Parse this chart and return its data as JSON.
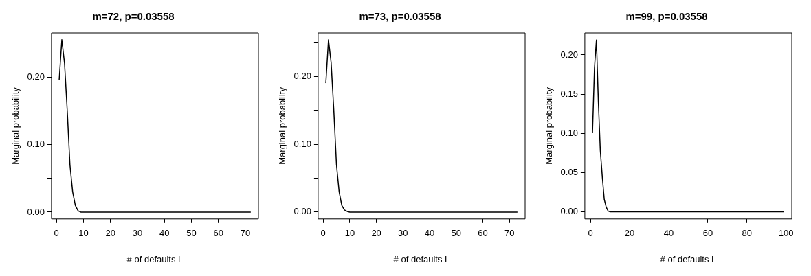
{
  "chart_data": [
    {
      "type": "line",
      "title": "m=72, p=0.03558",
      "xlabel": "# of defaults L",
      "ylabel": "Marginal probability",
      "grid": false,
      "legend": false,
      "marker": "none",
      "line_style": "solid",
      "xlim": [
        -1.84,
        74.84
      ],
      "xticks": [
        0,
        10,
        20,
        30,
        40,
        50,
        60,
        70
      ],
      "ylim": [
        -0.01,
        0.265
      ],
      "yticks": [
        {
          "value": 0,
          "label": "0.00"
        },
        {
          "value": 0.05,
          "label": null
        },
        {
          "value": 0.1,
          "label": "0.10"
        },
        {
          "value": 0.15,
          "label": null
        },
        {
          "value": 0.2,
          "label": "0.20"
        },
        {
          "value": 0.25,
          "label": null
        }
      ],
      "series": [
        {
          "color": "#000000",
          "x": [
            1,
            2,
            3,
            4,
            5,
            6,
            7,
            8,
            9,
            72
          ],
          "values": [
            0.195,
            0.255,
            0.22,
            0.15,
            0.07,
            0.03,
            0.01,
            0.002,
            0,
            0
          ]
        }
      ]
    },
    {
      "type": "line",
      "title": "m=73, p=0.03558",
      "xlabel": "# of defaults L",
      "ylabel": "Marginal probability",
      "grid": false,
      "legend": false,
      "marker": "none",
      "line_style": "solid",
      "xlim": [
        -1.88,
        75.88
      ],
      "xticks": [
        0,
        10,
        20,
        30,
        40,
        50,
        60,
        70
      ],
      "ylim": [
        -0.01,
        0.264
      ],
      "yticks": [
        {
          "value": 0,
          "label": "0.00"
        },
        {
          "value": 0.05,
          "label": null
        },
        {
          "value": 0.1,
          "label": "0.10"
        },
        {
          "value": 0.15,
          "label": null
        },
        {
          "value": 0.2,
          "label": "0.20"
        },
        {
          "value": 0.25,
          "label": null
        }
      ],
      "series": [
        {
          "color": "#000000",
          "x": [
            1,
            2,
            3,
            4,
            5,
            6,
            7,
            8,
            9,
            10,
            73
          ],
          "values": [
            0.19,
            0.254,
            0.22,
            0.15,
            0.07,
            0.03,
            0.01,
            0.003,
            0.001,
            0,
            0
          ]
        }
      ]
    },
    {
      "type": "line",
      "title": "m=99, p=0.03558",
      "xlabel": "# of defaults L",
      "ylabel": "Marginal probability",
      "grid": false,
      "legend": false,
      "marker": "none",
      "line_style": "solid",
      "xlim": [
        -2.92,
        102.92
      ],
      "xticks": [
        0,
        20,
        40,
        60,
        80,
        100
      ],
      "ylim": [
        -0.009,
        0.228
      ],
      "yticks": [
        {
          "value": 0,
          "label": "0.00"
        },
        {
          "value": 0.05,
          "label": "0.05"
        },
        {
          "value": 0.1,
          "label": "0.10"
        },
        {
          "value": 0.15,
          "label": "0.15"
        },
        {
          "value": 0.2,
          "label": "0.20"
        }
      ],
      "series": [
        {
          "color": "#000000",
          "x": [
            1,
            2,
            3,
            4,
            5,
            6,
            7,
            8,
            9,
            10,
            99
          ],
          "values": [
            0.101,
            0.183,
            0.219,
            0.14,
            0.078,
            0.045,
            0.016,
            0.006,
            0.001,
            0,
            0
          ]
        }
      ]
    }
  ]
}
